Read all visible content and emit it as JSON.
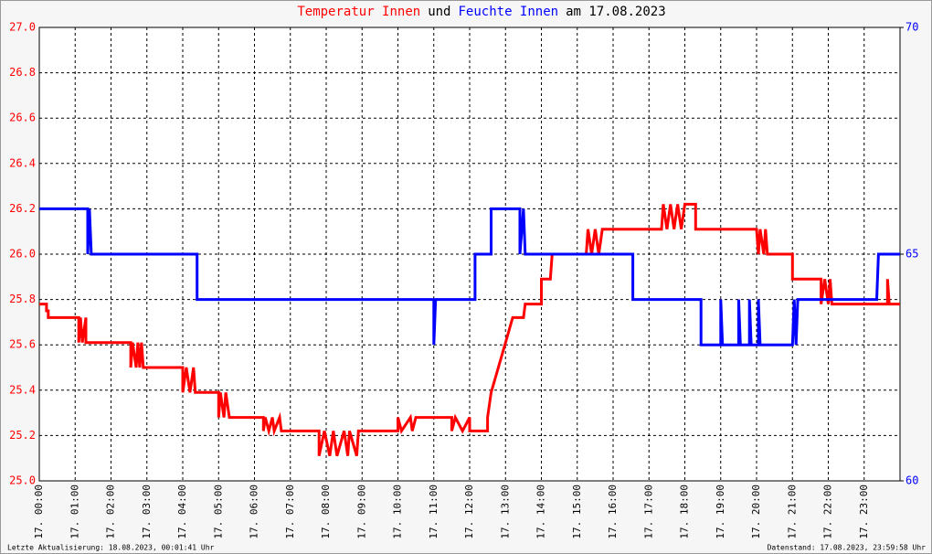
{
  "chart_data": {
    "type": "line",
    "title_joiner": "und",
    "title_date": "am 17.08.2023",
    "footer_left": "Letzte Aktualisierung: 18.08.2023, 00:01:41 Uhr",
    "footer_right": "Datenstand: 17.08.2023, 23:59:58 Uhr",
    "xlim": [
      0,
      24
    ],
    "xticks": [
      {
        "value": 0,
        "label": "17. 00:00"
      },
      {
        "value": 1,
        "label": "17. 01:00"
      },
      {
        "value": 2,
        "label": "17. 02:00"
      },
      {
        "value": 3,
        "label": "17. 03:00"
      },
      {
        "value": 4,
        "label": "17. 04:00"
      },
      {
        "value": 5,
        "label": "17. 05:00"
      },
      {
        "value": 6,
        "label": "17. 06:00"
      },
      {
        "value": 7,
        "label": "17. 07:00"
      },
      {
        "value": 8,
        "label": "17. 08:00"
      },
      {
        "value": 9,
        "label": "17. 09:00"
      },
      {
        "value": 10,
        "label": "17. 10:00"
      },
      {
        "value": 11,
        "label": "17. 11:00"
      },
      {
        "value": 12,
        "label": "17. 12:00"
      },
      {
        "value": 13,
        "label": "17. 13:00"
      },
      {
        "value": 14,
        "label": "17. 14:00"
      },
      {
        "value": 15,
        "label": "17. 15:00"
      },
      {
        "value": 16,
        "label": "17. 16:00"
      },
      {
        "value": 17,
        "label": "17. 17:00"
      },
      {
        "value": 18,
        "label": "17. 18:00"
      },
      {
        "value": 19,
        "label": "17. 19:00"
      },
      {
        "value": 20,
        "label": "17. 20:00"
      },
      {
        "value": 21,
        "label": "17. 21:00"
      },
      {
        "value": 22,
        "label": "17. 22:00"
      },
      {
        "value": 23,
        "label": "17. 23:00"
      }
    ],
    "ylim": [
      25,
      27
    ],
    "yticks": [
      {
        "value": 25,
        "label": "25.0"
      },
      25.2,
      25.4,
      25.6,
      25.8,
      {
        "value": 26,
        "label": "26.0"
      },
      26.2,
      26.4,
      26.6,
      26.8,
      {
        "value": 27,
        "label": "27.0"
      }
    ],
    "y2lim": [
      60,
      70
    ],
    "y2ticks": [
      60,
      65,
      70
    ],
    "grid": true,
    "series": [
      {
        "name": "Temperatur Innen",
        "color": "#ff0000",
        "x": [
          0,
          0.2,
          0.2,
          0.25,
          0.25,
          1.1,
          1.1,
          1.15,
          1.2,
          1.3,
          1.3,
          2.55,
          2.55,
          2.6,
          2.7,
          2.75,
          2.8,
          2.85,
          2.9,
          4.0,
          4.0,
          4.1,
          4.2,
          4.3,
          4.35,
          5.0,
          5.0,
          5.05,
          5.15,
          5.2,
          5.3,
          6.25,
          6.25,
          6.3,
          6.4,
          6.5,
          6.55,
          6.7,
          6.75,
          7.8,
          7.8,
          7.95,
          8.1,
          8.2,
          8.3,
          8.5,
          8.6,
          8.65,
          8.85,
          8.9,
          10.0,
          10.0,
          10.1,
          10.35,
          10.4,
          10.5,
          11.5,
          11.5,
          11.6,
          11.8,
          12.0,
          12.0,
          12.5,
          12.5,
          12.6,
          12.8,
          13.0,
          13.2,
          13.5,
          13.55,
          14.0,
          14.0,
          14.25,
          14.3,
          15.25,
          15.3,
          15.4,
          15.5,
          15.6,
          15.7,
          17.35,
          17.4,
          17.5,
          17.6,
          17.7,
          17.8,
          17.9,
          18.0,
          18.3,
          18.3,
          20.0,
          20.05,
          20.1,
          20.2,
          20.25,
          20.3,
          21.0,
          21.0,
          21.8,
          21.8,
          21.9,
          22.0,
          22.05,
          22.1,
          23.65,
          23.65,
          23.7,
          24
        ],
        "values": [
          25.78,
          25.78,
          25.75,
          25.75,
          25.72,
          25.72,
          25.61,
          25.72,
          25.61,
          25.72,
          25.61,
          25.61,
          25.5,
          25.61,
          25.5,
          25.61,
          25.5,
          25.61,
          25.5,
          25.5,
          25.39,
          25.5,
          25.39,
          25.5,
          25.39,
          25.39,
          25.28,
          25.39,
          25.28,
          25.39,
          25.28,
          25.28,
          25.22,
          25.28,
          25.22,
          25.28,
          25.22,
          25.28,
          25.22,
          25.22,
          25.11,
          25.22,
          25.11,
          25.22,
          25.11,
          25.22,
          25.11,
          25.22,
          25.11,
          25.22,
          25.22,
          25.28,
          25.22,
          25.28,
          25.22,
          25.28,
          25.28,
          25.22,
          25.28,
          25.22,
          25.28,
          25.22,
          25.22,
          25.28,
          25.39,
          25.5,
          25.61,
          25.72,
          25.72,
          25.78,
          25.78,
          25.89,
          25.89,
          26.0,
          26.0,
          26.11,
          26.0,
          26.11,
          26.0,
          26.11,
          26.11,
          26.22,
          26.11,
          26.22,
          26.11,
          26.22,
          26.11,
          26.22,
          26.22,
          26.11,
          26.11,
          26.0,
          26.11,
          26.0,
          26.11,
          26.0,
          26.0,
          25.89,
          25.89,
          25.78,
          25.89,
          25.78,
          25.89,
          25.78,
          25.78,
          25.89,
          25.78,
          25.78
        ]
      },
      {
        "name": "Feuchte Innen",
        "color": "#0000ff",
        "axis": "y2",
        "x": [
          0,
          1.35,
          1.35,
          1.4,
          1.45,
          4.4,
          4.4,
          11.0,
          11.0,
          11.05,
          12.15,
          12.15,
          12.6,
          12.6,
          13.4,
          13.4,
          13.5,
          13.55,
          16.55,
          16.55,
          18.45,
          18.45,
          19.0,
          19.0,
          19.05,
          19.5,
          19.5,
          19.55,
          19.8,
          19.8,
          19.85,
          20.05,
          20.05,
          20.1,
          21.0,
          21.05,
          21.1,
          21.15,
          23.35,
          23.4,
          24
        ],
        "values": [
          66,
          66,
          65,
          66,
          65,
          65,
          64,
          64,
          63,
          64,
          64,
          65,
          65,
          66,
          66,
          65,
          66,
          65,
          65,
          64,
          64,
          63,
          63,
          64,
          63,
          63,
          64,
          63,
          63,
          64,
          63,
          63,
          64,
          63,
          63,
          64,
          63,
          64,
          64,
          65,
          65
        ]
      }
    ]
  }
}
